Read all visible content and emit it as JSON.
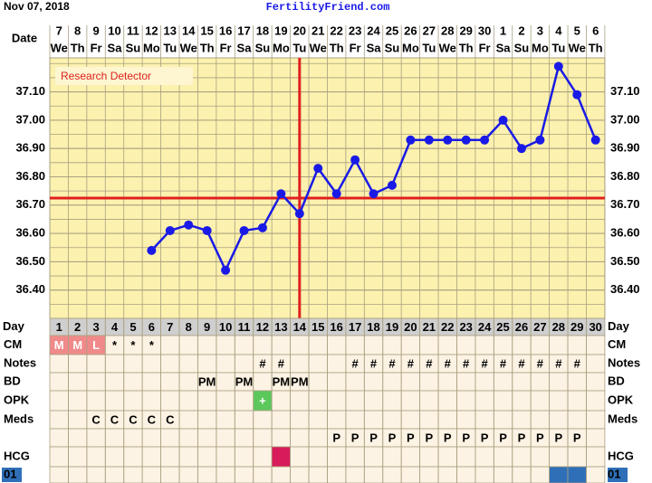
{
  "header": {
    "date": "Nov 07, 2018",
    "site": "FertilityFriend.com"
  },
  "chart_data": {
    "type": "line",
    "x_label": "Date",
    "dates": [
      7,
      8,
      9,
      10,
      11,
      12,
      13,
      14,
      15,
      16,
      17,
      18,
      19,
      20,
      21,
      22,
      23,
      24,
      25,
      26,
      27,
      28,
      29,
      30,
      1,
      2,
      3,
      4,
      5,
      6
    ],
    "weekdays": [
      "We",
      "Th",
      "Fr",
      "Sa",
      "Su",
      "Mo",
      "Tu",
      "We",
      "Th",
      "Fr",
      "Sa",
      "Su",
      "Mo",
      "Tu",
      "We",
      "Th",
      "Fr",
      "Sa",
      "Su",
      "Mo",
      "Tu",
      "We",
      "Th",
      "Fr",
      "Sa",
      "Su",
      "Mo",
      "Tu",
      "We",
      "Th"
    ],
    "values": [
      null,
      null,
      null,
      null,
      null,
      36.54,
      36.61,
      36.63,
      36.61,
      36.47,
      36.61,
      36.62,
      36.74,
      36.67,
      36.83,
      36.74,
      36.86,
      36.74,
      36.77,
      36.93,
      36.93,
      36.93,
      36.93,
      36.93,
      37.0,
      36.9,
      36.93,
      37.19,
      37.09,
      36.93
    ],
    "color": "#1a1ae6",
    "annotation": "Research Detector",
    "coverline": 36.725,
    "coverline_color": "#e02020",
    "ovulation_day": 14,
    "ylim": [
      36.3,
      37.22
    ],
    "yticks": [
      {
        "value": 36.4,
        "label": "36.40"
      },
      {
        "value": 36.5,
        "label": "36.50"
      },
      {
        "value": 36.6,
        "label": "36.60"
      },
      {
        "value": 36.7,
        "label": "36.70"
      },
      {
        "value": 36.8,
        "label": "36.80"
      },
      {
        "value": 36.9,
        "label": "36.90"
      },
      {
        "value": 37.0,
        "label": "37.00"
      },
      {
        "value": 37.1,
        "label": "37.10"
      }
    ],
    "grid": true
  },
  "table": {
    "day_label": "Day",
    "days": [
      1,
      2,
      3,
      4,
      5,
      6,
      7,
      8,
      9,
      10,
      11,
      12,
      13,
      14,
      15,
      16,
      17,
      18,
      19,
      20,
      21,
      22,
      23,
      24,
      25,
      26,
      27,
      28,
      29,
      30
    ],
    "rows": [
      {
        "label": "CM",
        "cells": [
          "M",
          "M",
          "L",
          "*",
          "*",
          "*",
          null,
          null,
          null,
          null,
          null,
          null,
          null,
          null,
          null,
          null,
          null,
          null,
          null,
          null,
          null,
          null,
          null,
          null,
          null,
          null,
          null,
          null,
          null,
          null
        ],
        "fills": [
          "#f08a8a",
          "#f08a8a",
          "#f08a8a",
          null,
          null,
          null,
          null,
          null,
          null,
          null,
          null,
          null,
          null,
          null,
          null,
          null,
          null,
          null,
          null,
          null,
          null,
          null,
          null,
          null,
          null,
          null,
          null,
          null,
          null,
          null
        ]
      },
      {
        "label": "Notes",
        "cells": [
          null,
          null,
          null,
          null,
          null,
          null,
          null,
          null,
          null,
          null,
          null,
          "#",
          "#",
          null,
          null,
          null,
          "#",
          "#",
          "#",
          "#",
          "#",
          "#",
          "#",
          "#",
          "#",
          "#",
          "#",
          "#",
          "#",
          null
        ]
      },
      {
        "label": "BD",
        "cells": [
          null,
          null,
          null,
          null,
          null,
          null,
          null,
          null,
          "PM",
          null,
          "PM",
          null,
          "PM",
          "PM",
          null,
          null,
          null,
          null,
          null,
          null,
          null,
          null,
          null,
          null,
          null,
          null,
          null,
          null,
          null,
          null
        ]
      },
      {
        "label": "OPK",
        "cells": [
          null,
          null,
          null,
          null,
          null,
          null,
          null,
          null,
          null,
          null,
          null,
          "+",
          null,
          null,
          null,
          null,
          null,
          null,
          null,
          null,
          null,
          null,
          null,
          null,
          null,
          null,
          null,
          null,
          null,
          null
        ],
        "fills": [
          null,
          null,
          null,
          null,
          null,
          null,
          null,
          null,
          null,
          null,
          null,
          "#5cc85c",
          null,
          null,
          null,
          null,
          null,
          null,
          null,
          null,
          null,
          null,
          null,
          null,
          null,
          null,
          null,
          null,
          null,
          null
        ]
      },
      {
        "label": "Meds",
        "cells": [
          null,
          null,
          "C",
          "C",
          "C",
          "C",
          "C",
          null,
          null,
          null,
          null,
          null,
          null,
          null,
          null,
          null,
          null,
          null,
          null,
          null,
          null,
          null,
          null,
          null,
          null,
          null,
          null,
          null,
          null,
          null
        ]
      },
      {
        "cells": [
          null,
          null,
          null,
          null,
          null,
          null,
          null,
          null,
          null,
          null,
          null,
          null,
          null,
          null,
          null,
          "P",
          "P",
          "P",
          "P",
          "P",
          "P",
          "P",
          "P",
          "P",
          "P",
          "P",
          "P",
          "P",
          "P",
          null
        ]
      },
      {
        "label": "HCG",
        "cells": [
          null,
          null,
          null,
          null,
          null,
          null,
          null,
          null,
          null,
          null,
          null,
          null,
          null,
          null,
          null,
          null,
          null,
          null,
          null,
          null,
          null,
          null,
          null,
          null,
          null,
          null,
          null,
          null,
          null,
          null
        ],
        "fills": [
          null,
          null,
          null,
          null,
          null,
          null,
          null,
          null,
          null,
          null,
          null,
          null,
          "#d81b5a",
          null,
          null,
          null,
          null,
          null,
          null,
          null,
          null,
          null,
          null,
          null,
          null,
          null,
          null,
          null,
          null,
          null
        ]
      },
      {
        "label": "01",
        "label_fill": "#2f6fb8",
        "cells": [
          null,
          null,
          null,
          null,
          null,
          null,
          null,
          null,
          null,
          null,
          null,
          null,
          null,
          null,
          null,
          null,
          null,
          null,
          null,
          null,
          null,
          null,
          null,
          null,
          null,
          null,
          null,
          null,
          null,
          null
        ],
        "fills": [
          null,
          null,
          null,
          null,
          null,
          null,
          null,
          null,
          null,
          null,
          null,
          null,
          null,
          null,
          null,
          null,
          null,
          null,
          null,
          null,
          null,
          null,
          null,
          null,
          null,
          null,
          null,
          "#2f6fb8",
          "#2f6fb8",
          null
        ]
      }
    ]
  }
}
